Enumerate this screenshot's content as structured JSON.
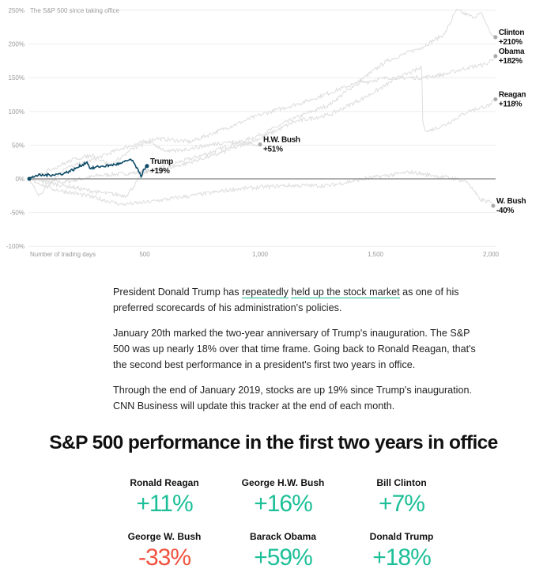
{
  "chart_data": {
    "type": "line",
    "title": "The S&P 500 since taking office",
    "xlabel": "Number of trading days",
    "xlim": [
      0,
      2000
    ],
    "ylim": [
      -100,
      250
    ],
    "xticks": [
      {
        "v": 500,
        "label": "500"
      },
      {
        "v": 1000,
        "label": "1,000"
      },
      {
        "v": 1500,
        "label": "1,500"
      },
      {
        "v": 2000,
        "label": "2,000"
      }
    ],
    "yticks": [
      {
        "v": 250,
        "label": "250%"
      },
      {
        "v": 200,
        "label": "200%"
      },
      {
        "v": 150,
        "label": "150%"
      },
      {
        "v": 100,
        "label": "100%"
      },
      {
        "v": 50,
        "label": "50%"
      },
      {
        "v": 0,
        "label": "0%"
      },
      {
        "v": -50,
        "label": "-50%"
      },
      {
        "v": -100,
        "label": "-100%"
      }
    ],
    "grid": true,
    "colors": {
      "highlight": "#0b4a66",
      "others": "#dddddd",
      "end_dot": "#aaaaaa"
    },
    "series": [
      {
        "name": "Clinton",
        "end_label": "+210%",
        "highlight": false,
        "points": [
          [
            0,
            0
          ],
          [
            150,
            -5
          ],
          [
            300,
            5
          ],
          [
            500,
            10
          ],
          [
            750,
            35
          ],
          [
            1000,
            65
          ],
          [
            1150,
            90
          ],
          [
            1300,
            110
          ],
          [
            1450,
            150
          ],
          [
            1550,
            175
          ],
          [
            1700,
            195
          ],
          [
            1800,
            215
          ],
          [
            1850,
            250
          ],
          [
            1920,
            240
          ],
          [
            1960,
            245
          ],
          [
            2000,
            215
          ],
          [
            2020,
            210
          ]
        ]
      },
      {
        "name": "Obama",
        "end_label": "+182%",
        "highlight": false,
        "points": [
          [
            0,
            0
          ],
          [
            40,
            -25
          ],
          [
            150,
            15
          ],
          [
            250,
            25
          ],
          [
            400,
            45
          ],
          [
            550,
            60
          ],
          [
            700,
            55
          ],
          [
            850,
            75
          ],
          [
            1000,
            95
          ],
          [
            1200,
            115
          ],
          [
            1400,
            140
          ],
          [
            1550,
            150
          ],
          [
            1700,
            150
          ],
          [
            1800,
            155
          ],
          [
            1900,
            165
          ],
          [
            1980,
            170
          ],
          [
            2020,
            182
          ]
        ]
      },
      {
        "name": "Reagan",
        "end_label": "+118%",
        "highlight": false,
        "points": [
          [
            0,
            0
          ],
          [
            150,
            -10
          ],
          [
            300,
            -20
          ],
          [
            420,
            -25
          ],
          [
            500,
            10
          ],
          [
            650,
            20
          ],
          [
            800,
            35
          ],
          [
            1000,
            60
          ],
          [
            1150,
            85
          ],
          [
            1300,
            95
          ],
          [
            1450,
            120
          ],
          [
            1600,
            150
          ],
          [
            1700,
            165
          ],
          [
            1705,
            85
          ],
          [
            1720,
            70
          ],
          [
            1800,
            80
          ],
          [
            1900,
            100
          ],
          [
            2000,
            110
          ],
          [
            2020,
            118
          ]
        ]
      },
      {
        "name": "W. Bush",
        "end_label": "-40%",
        "highlight": false,
        "points": [
          [
            0,
            0
          ],
          [
            100,
            -15
          ],
          [
            250,
            -25
          ],
          [
            400,
            -38
          ],
          [
            500,
            -35
          ],
          [
            700,
            -25
          ],
          [
            900,
            -15
          ],
          [
            1100,
            -10
          ],
          [
            1300,
            -10
          ],
          [
            1450,
            0
          ],
          [
            1650,
            10
          ],
          [
            1750,
            5
          ],
          [
            1850,
            0
          ],
          [
            1900,
            -5
          ],
          [
            1950,
            -30
          ],
          [
            2000,
            -35
          ],
          [
            2010,
            -40
          ]
        ]
      },
      {
        "name": "H.W. Bush",
        "end_label": "+51%",
        "highlight": false,
        "points": [
          [
            0,
            0
          ],
          [
            100,
            15
          ],
          [
            200,
            30
          ],
          [
            280,
            35
          ],
          [
            350,
            20
          ],
          [
            450,
            45
          ],
          [
            520,
            55
          ],
          [
            600,
            40
          ],
          [
            700,
            45
          ],
          [
            850,
            55
          ],
          [
            1000,
            51
          ]
        ]
      },
      {
        "name": "Trump",
        "end_label": "+19%",
        "highlight": true,
        "points": [
          [
            0,
            0
          ],
          [
            30,
            5
          ],
          [
            100,
            6
          ],
          [
            150,
            8
          ],
          [
            200,
            15
          ],
          [
            250,
            25
          ],
          [
            265,
            15
          ],
          [
            300,
            18
          ],
          [
            350,
            20
          ],
          [
            400,
            23
          ],
          [
            440,
            29
          ],
          [
            460,
            20
          ],
          [
            475,
            10
          ],
          [
            485,
            3
          ],
          [
            495,
            14
          ],
          [
            510,
            19
          ]
        ]
      }
    ]
  },
  "article": {
    "p1_before": "President Donald Trump has ",
    "p1_link1": "repeatedly",
    "p1_link2": "held up the stock market",
    "p1_after": " as one of his preferred scorecards of his administration's policies.",
    "p2": "January 20th marked the two-year anniversary of Trump's inauguration. The S&P 500 was up nearly 18% over that time frame. Going back to Ronald Reagan, that's the second best performance in a president's first two years in office.",
    "p3": "Through the end of January 2019, stocks are up 19% since Trump's inauguration. CNN Business will update this tracker at the end of each month."
  },
  "summary": {
    "title": "S&P 500 performance in the first two years in office",
    "colors": {
      "positive": "#1dbf98",
      "negative": "#f0533f"
    },
    "items": [
      {
        "name": "Ronald Reagan",
        "value": "+11%"
      },
      {
        "name": "George H.W. Bush",
        "value": "+16%"
      },
      {
        "name": "Bill Clinton",
        "value": "+7%"
      },
      {
        "name": "George W. Bush",
        "value": "-33%"
      },
      {
        "name": "Barack Obama",
        "value": "+59%"
      },
      {
        "name": "Donald Trump",
        "value": "+18%"
      }
    ]
  }
}
